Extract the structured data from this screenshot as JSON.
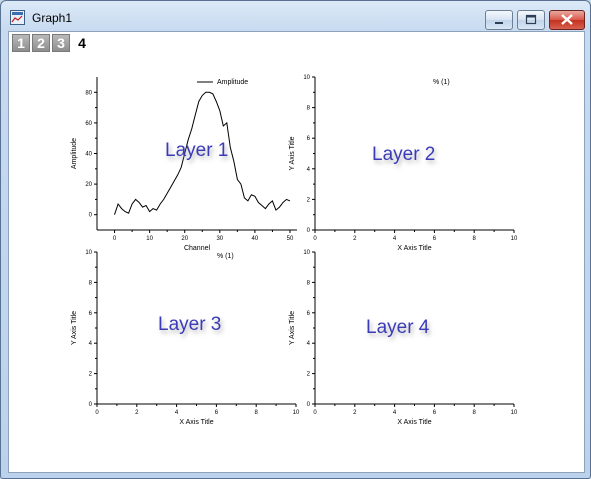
{
  "window": {
    "title": "Graph1"
  },
  "layer_tabs": [
    "1",
    "2",
    "3",
    "4"
  ],
  "active_layer": "4",
  "colors": {
    "layer_label": "#3a3ab8",
    "plot_line": "#000000"
  },
  "layers": [
    {
      "name": "Layer 1",
      "legend": "Amplitude",
      "xlabel": "Channel",
      "ylabel": "Amplitude",
      "xticks": [
        "0",
        "10",
        "20",
        "30",
        "40",
        "50"
      ],
      "yticks": [
        "0",
        "20",
        "40",
        "60",
        "80"
      ]
    },
    {
      "name": "Layer 2",
      "legend": "% (1)",
      "xlabel": "X Axis Title",
      "ylabel": "Y Axis Title",
      "xticks": [
        "0",
        "2",
        "4",
        "6",
        "8",
        "10"
      ],
      "yticks": [
        "0",
        "2",
        "4",
        "6",
        "8",
        "10"
      ]
    },
    {
      "name": "Layer 3",
      "legend": "% (1)",
      "xlabel": "X Axis Title",
      "ylabel": "Y Axis Title",
      "xticks": [
        "0",
        "2",
        "4",
        "6",
        "8",
        "10"
      ],
      "yticks": [
        "0",
        "2",
        "4",
        "6",
        "8",
        "10"
      ]
    },
    {
      "name": "Layer 4",
      "legend": "",
      "xlabel": "X Axis Title",
      "ylabel": "Y Axis Title",
      "xticks": [
        "0",
        "2",
        "4",
        "6",
        "8",
        "10"
      ],
      "yticks": [
        "0",
        "2",
        "4",
        "6",
        "8",
        "10"
      ]
    }
  ],
  "chart_data": {
    "type": "line",
    "series": [
      {
        "name": "Amplitude",
        "x": [
          0,
          1,
          2,
          3,
          4,
          5,
          6,
          7,
          8,
          9,
          10,
          11,
          12,
          13,
          14,
          15,
          16,
          17,
          18,
          19,
          20,
          21,
          22,
          23,
          24,
          25,
          26,
          27,
          28,
          29,
          30,
          31,
          32,
          33,
          34,
          35,
          36,
          37,
          38,
          39,
          40,
          41,
          42,
          43,
          44,
          45,
          46,
          47,
          48,
          49,
          50
        ],
        "values": [
          0,
          7,
          4,
          2,
          1,
          7,
          10,
          8,
          5,
          6,
          2,
          4,
          3,
          7,
          10,
          14,
          18,
          22,
          26,
          31,
          40,
          49,
          56,
          65,
          74,
          78,
          80,
          80,
          79,
          74,
          68,
          58,
          60,
          44,
          35,
          23,
          20,
          11,
          9,
          13,
          12,
          8,
          6,
          4,
          7,
          9,
          3,
          5,
          8,
          10,
          9
        ]
      }
    ],
    "xlim": [
      -5,
      52
    ],
    "ylim": [
      -10,
      90
    ],
    "xlabel": "Channel",
    "ylabel": "Amplitude"
  }
}
